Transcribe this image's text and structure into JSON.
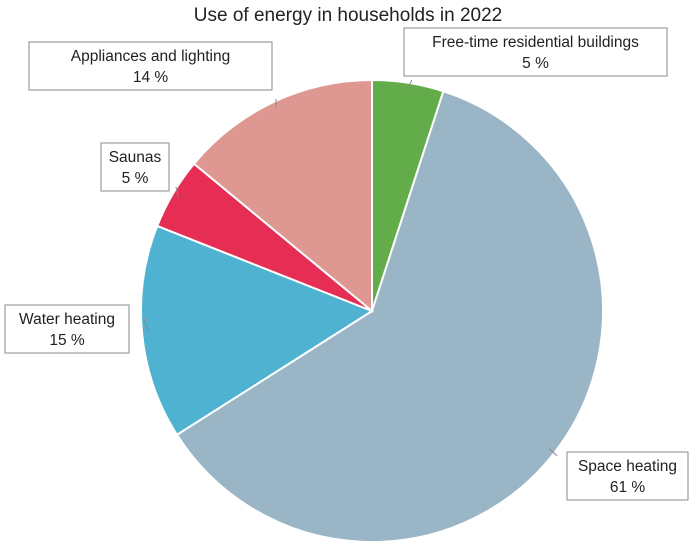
{
  "chart_data": {
    "type": "pie",
    "title": "Use of energy in households in 2022",
    "slices": [
      {
        "name": "Free-time residential buildings",
        "value": 5,
        "value_label": "5 %",
        "color": "#62ac4a"
      },
      {
        "name": "Space heating",
        "value": 61,
        "value_label": "61 %",
        "color": "#9ab5c6"
      },
      {
        "name": "Water heating",
        "value": 15,
        "value_label": "15 %",
        "color": "#4eb2d0"
      },
      {
        "name": "Saunas",
        "value": 5,
        "value_label": "5 %",
        "color": "#e62e55"
      },
      {
        "name": "Appliances and lighting",
        "value": 14,
        "value_label": "14 %",
        "color": "#df9891"
      }
    ],
    "start_angle": "12 o'clock",
    "direction": "clockwise",
    "legend": "none (callout labels)"
  }
}
